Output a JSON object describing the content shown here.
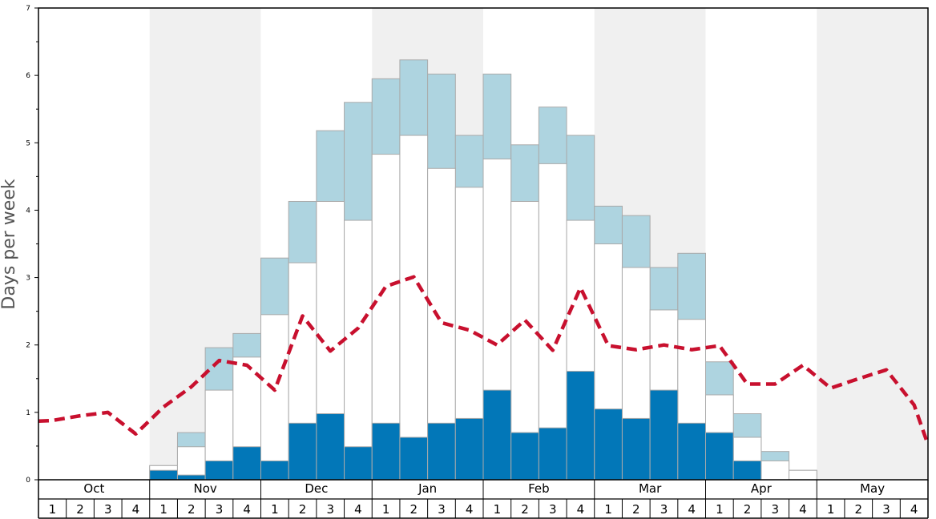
{
  "chart_data": {
    "type": "bar",
    "title": "",
    "xlabel": "",
    "ylabel": "Days per week",
    "ylim": [
      0,
      7
    ],
    "yticks": [
      0,
      1,
      2,
      3,
      4,
      5,
      6,
      7
    ],
    "grid": false,
    "months": [
      "Oct",
      "Nov",
      "Dec",
      "Jan",
      "Feb",
      "Mar",
      "Apr",
      "May"
    ],
    "week_labels": [
      "1",
      "2",
      "3",
      "4"
    ],
    "shaded_months": [
      "Nov",
      "Jan",
      "Mar",
      "May"
    ],
    "colors": {
      "dark": "#0277b8",
      "white": "#ffffff",
      "light": "#aed4e0",
      "line": "#c8102e",
      "shade": "#f0f0f0",
      "bar_edge": "#aaaaaa"
    },
    "series": [
      {
        "key": "dark",
        "values": [
          0,
          0,
          0,
          0,
          0.14,
          0.07,
          0.28,
          0.49,
          0.28,
          0.84,
          0.98,
          0.49,
          0.84,
          0.63,
          0.84,
          0.91,
          1.33,
          0.7,
          0.77,
          1.61,
          1.05,
          0.91,
          1.33,
          0.84,
          0.7,
          0.28,
          0,
          0,
          0,
          0,
          0,
          0
        ]
      },
      {
        "key": "white",
        "values": [
          0,
          0,
          0,
          0,
          0.21,
          0.49,
          1.33,
          1.82,
          2.45,
          3.22,
          4.13,
          3.85,
          4.83,
          5.11,
          4.62,
          4.34,
          4.76,
          4.13,
          4.69,
          3.85,
          3.5,
          3.15,
          2.52,
          2.38,
          1.26,
          0.63,
          0.28,
          0.14,
          0,
          0,
          0,
          0
        ]
      },
      {
        "key": "light",
        "values": [
          0,
          0,
          0,
          0,
          0.21,
          0.7,
          1.96,
          2.17,
          3.29,
          4.13,
          5.18,
          5.6,
          5.95,
          6.23,
          6.02,
          5.11,
          6.02,
          4.97,
          5.53,
          5.11,
          4.06,
          3.92,
          3.15,
          3.36,
          1.75,
          0.98,
          0.42,
          0.14,
          0,
          0,
          0,
          0
        ]
      }
    ],
    "line": {
      "style": "dashed",
      "values": [
        0.88,
        0.95,
        1.0,
        0.68,
        1.08,
        1.38,
        1.77,
        1.7,
        1.33,
        2.43,
        1.91,
        2.25,
        2.87,
        3.01,
        2.33,
        2.22,
        2.0,
        2.37,
        1.92,
        2.85,
        1.99,
        1.93,
        2.0,
        1.93,
        1.99,
        1.42,
        1.42,
        1.7,
        1.36,
        1.5,
        1.63,
        1.11
      ],
      "end_value": 0.52
    }
  }
}
